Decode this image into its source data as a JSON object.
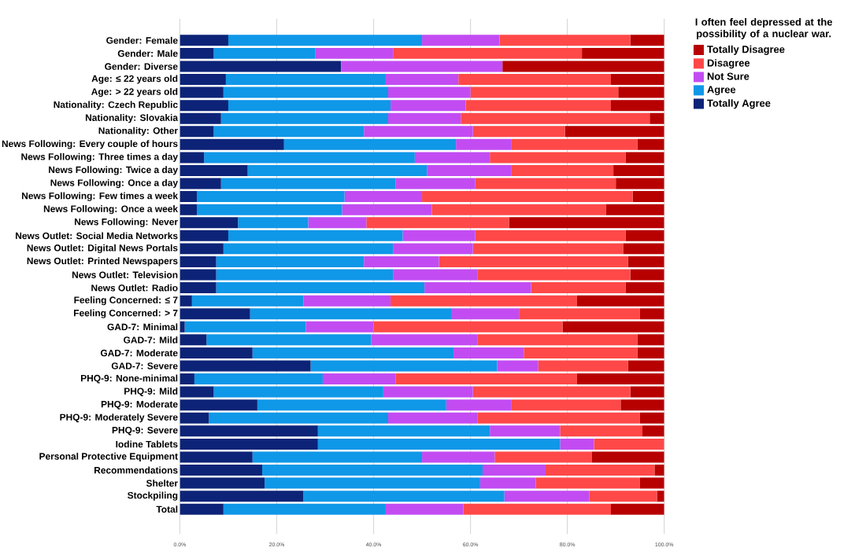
{
  "chart_data": {
    "type": "bar",
    "orientation": "horizontal",
    "stacked": true,
    "legend_title": "I often feel depressed at the possibility of a nuclear war.",
    "categories": [
      "Gender: Female",
      "Gender: Male",
      "Gender: Diverse",
      "Age: ≤ 22 years old",
      "Age: > 22 years old",
      "Nationality: Czech Republic",
      "Nationality: Slovakia",
      "Nationality: Other",
      "News Following: Every couple of hours",
      "News Following: Three times a day",
      "News Following: Twice a day",
      "News Following: Once a day",
      "News Following: Few times a week",
      "News Following: Once a week",
      "News Following: Never",
      "News Outlet: Social Media Networks",
      "News Outlet: Digital News Portals",
      "News Outlet: Printed Newspapers",
      "News Outlet: Television",
      "News Outlet: Radio",
      "Feeling Concerned: ≤ 7",
      "Feeling Concerned: > 7",
      "GAD-7: Minimal",
      "GAD-7: Mild",
      "GAD-7: Moderate",
      "GAD-7: Severe",
      "PHQ-9: None-minimal",
      "PHQ-9: Mild",
      "PHQ-9: Moderate",
      "PHQ-9: Moderately Severe",
      "PHQ-9: Severe",
      "Iodine Tablets",
      "Personal Protective Equipment",
      "Recommendations",
      "Shelter",
      "Stockpiling",
      "Total"
    ],
    "series": [
      {
        "name": "Totally Agree",
        "color": "#0c2377",
        "values": [
          10,
          7,
          33.3,
          9.5,
          9,
          10,
          8.5,
          7,
          21.5,
          5,
          14,
          8.5,
          3.5,
          3.5,
          12,
          10,
          9,
          7.5,
          7.5,
          7.5,
          2.5,
          14.5,
          1,
          5.5,
          15,
          27,
          3,
          7,
          16,
          6,
          28.5,
          28.5,
          15,
          17,
          17.5,
          25.5,
          9
        ]
      },
      {
        "name": "Agree",
        "color": "#0f97e8",
        "values": [
          40,
          21,
          0,
          33,
          34,
          33.5,
          34.5,
          31,
          35.5,
          43.5,
          37,
          36,
          30.5,
          30,
          14.5,
          36,
          35,
          30.5,
          36.5,
          43,
          23,
          41.5,
          25,
          34,
          41.5,
          38.5,
          26.5,
          35,
          39,
          37,
          35.5,
          50,
          35,
          45.5,
          44.5,
          41.5,
          33.5
        ]
      },
      {
        "name": "Not Sure",
        "color": "#c24cf2",
        "values": [
          16,
          16,
          33.3,
          15,
          17,
          15.5,
          15,
          22.5,
          11.5,
          15.5,
          17.5,
          16.5,
          16,
          18.5,
          12,
          15,
          16.5,
          15.5,
          17.5,
          22,
          18,
          14,
          14,
          22,
          14.5,
          8.5,
          15,
          18.5,
          13.5,
          18.5,
          14.5,
          7,
          15,
          13,
          11.5,
          17.5,
          16
        ]
      },
      {
        "name": "Disagree",
        "color": "#ff4848",
        "values": [
          27,
          39,
          0,
          31.5,
          30.5,
          30,
          39,
          19,
          26,
          28,
          21,
          29,
          43.5,
          36,
          29.5,
          31,
          31,
          39,
          31.5,
          19.5,
          38.5,
          25,
          39,
          33,
          23.5,
          18.5,
          37.5,
          32.5,
          22.5,
          33.5,
          17,
          14.5,
          20,
          22.5,
          21.5,
          14,
          30.5
        ]
      },
      {
        "name": "Totally Disagree",
        "color": "#b70000",
        "values": [
          7,
          17,
          33.4,
          11,
          9.5,
          11,
          3,
          20.5,
          5.5,
          8,
          10.5,
          10,
          6.5,
          12,
          32,
          8,
          8.5,
          7.5,
          7,
          8,
          18,
          5,
          21,
          5.5,
          5.5,
          7.5,
          18,
          7,
          9,
          5,
          4.5,
          0,
          15,
          2,
          5,
          1.5,
          11
        ]
      }
    ],
    "xlim": [
      0,
      100
    ],
    "xticks": [
      {
        "value": 0,
        "label": "0.0%"
      },
      {
        "value": 20,
        "label": "20.0%"
      },
      {
        "value": 40,
        "label": "40.0%"
      },
      {
        "value": 60,
        "label": "60.0%"
      },
      {
        "value": 80,
        "label": "80.0%"
      },
      {
        "value": 100,
        "label": "100.0%"
      }
    ],
    "grid": "x",
    "legend": "right"
  }
}
